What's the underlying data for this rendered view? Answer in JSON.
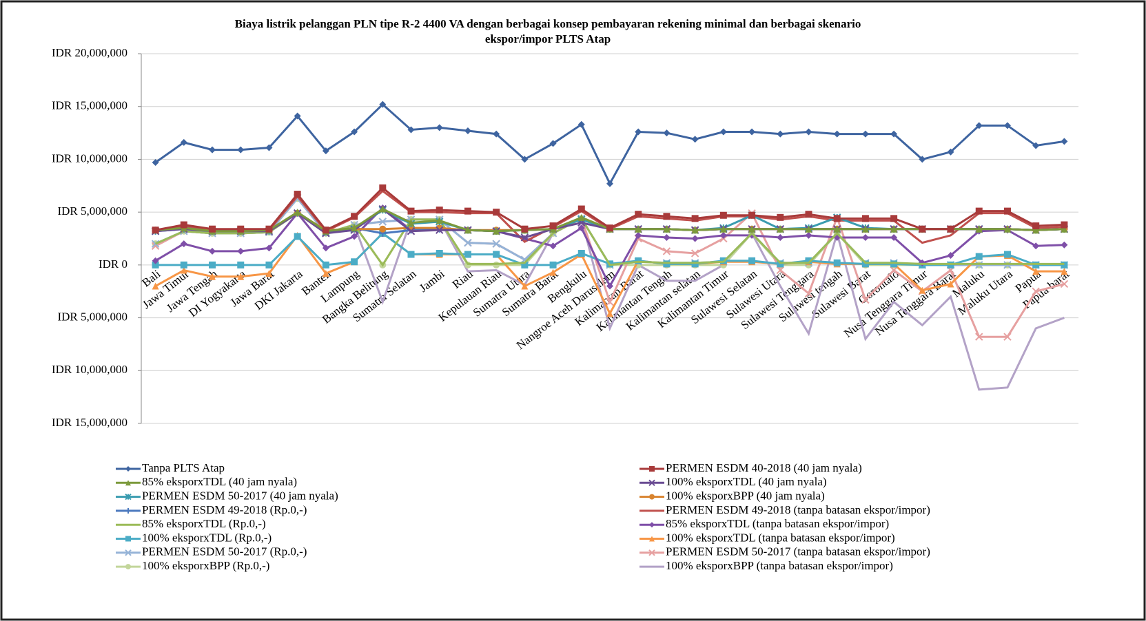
{
  "chart_data": {
    "type": "line",
    "title": [
      "Biaya listrik pelanggan PLN tipe R-2 4400 VA dengan berbagai konsep pembayaran  rekening minimal  dan berbagai skenario",
      "ekspor/impor  PLTS Atap"
    ],
    "categories": [
      "Bali",
      "Jawa Timur",
      "Jawa Tengah",
      "DI Yogyakarta",
      "Jawa Barat",
      "DKI Jakarta",
      "Banten",
      "Lampung",
      "Bangka Belitung",
      "Sumatra Selatan",
      "Jambi",
      "Riau",
      "Kepulauan Riau",
      "Sumatra Utara",
      "Sumatra Barat",
      "Bengkulu",
      "Nangroe Aceh Darusalam",
      "Kalimantan Barat",
      "Kalimantan Tengah",
      "Kalimantan selatan",
      "Kalimantan Timur",
      "Sulawesi Selatan",
      "Sulawesi Utara",
      "Sulawesi Tenggara",
      "Sulawesi tengah",
      "Sulawesi Barat",
      "Gorontalo",
      "Nusa Tenggara Timur",
      "Nusa Tenggara Barat",
      "Maluku",
      "Maluku Utara",
      "Papua",
      "Papua barat"
    ],
    "ylim": [
      -15000000,
      20000000
    ],
    "yticks": [
      {
        "value": 20000000,
        "label": "IDR 20,000,000"
      },
      {
        "value": 15000000,
        "label": "IDR 15,000,000"
      },
      {
        "value": 10000000,
        "label": "IDR 10,000,000"
      },
      {
        "value": 5000000,
        "label": "IDR 5,000,000"
      },
      {
        "value": 0,
        "label": "IDR 0"
      },
      {
        "value": -5000000,
        "label": "IDR 5,000,000"
      },
      {
        "value": -10000000,
        "label": "IDR 10,000,000"
      },
      {
        "value": -15000000,
        "label": "IDR 15,000,000"
      }
    ],
    "grid": true,
    "series": [
      {
        "name": "Tanpa PLTS Atap",
        "color": "#3e64a0",
        "marker": "diamond",
        "values": [
          9700000.0,
          11600000.0,
          10900000.0,
          10900000.0,
          11100000.0,
          14100000.0,
          10800000.0,
          12600000.0,
          15200000.0,
          12800000.0,
          13000000.0,
          12700000.0,
          12400000.0,
          10000000.0,
          11500000.0,
          13300000.0,
          7700000.0,
          12600000.0,
          12500000.0,
          11900000.0,
          12600000.0,
          12600000.0,
          12400000.0,
          12600000.0,
          12400000.0,
          12400000.0,
          12400000.0,
          10000000.0,
          10700000.0,
          13200000.0,
          13200000.0,
          11300000.0,
          11700000.0
        ]
      },
      {
        "name": "PERMEN ESDM 40-2018 (40 jam nyala)",
        "color": "#a83a3a",
        "marker": "square",
        "values": [
          3300000.0,
          3800000.0,
          3400000.0,
          3400000.0,
          3400000.0,
          6700000.0,
          3300000.0,
          4600000.0,
          7300000.0,
          5100000.0,
          5200000.0,
          5100000.0,
          5000000.0,
          3400000.0,
          3700000.0,
          5300000.0,
          3500000.0,
          4800000.0,
          4600000.0,
          4400000.0,
          4700000.0,
          4700000.0,
          4500000.0,
          4800000.0,
          4400000.0,
          4400000.0,
          4400000.0,
          3400000.0,
          3400000.0,
          5100000.0,
          5100000.0,
          3700000.0,
          3800000.0
        ]
      },
      {
        "name": "85% eksporxTDL (40 jam nyala)",
        "color": "#7c9a3c",
        "marker": "triangle",
        "values": [
          3300000.0,
          3500000.0,
          3200000.0,
          3200000.0,
          3300000.0,
          5000000.0,
          3200000.0,
          3500000.0,
          5300000.0,
          4000000.0,
          4200000.0,
          3300000.0,
          3200000.0,
          3300000.0,
          3400000.0,
          4500000.0,
          3400000.0,
          3400000.0,
          3400000.0,
          3300000.0,
          3400000.0,
          3400000.0,
          3400000.0,
          3400000.0,
          3400000.0,
          3400000.0,
          3400000.0,
          3400000.0,
          3400000.0,
          3400000.0,
          3400000.0,
          3300000.0,
          3400000.0
        ]
      },
      {
        "name": "100% eksporxTDL (40 jam nyala)",
        "color": "#6a4c93",
        "marker": "x",
        "values": [
          3200000.0,
          3400000.0,
          3200000.0,
          3200000.0,
          3200000.0,
          4900000.0,
          3000000.0,
          3300000.0,
          5300000.0,
          3200000.0,
          3300000.0,
          3300000.0,
          3200000.0,
          2600000.0,
          3400000.0,
          4000000.0,
          3400000.0,
          3400000.0,
          3400000.0,
          3300000.0,
          3400000.0,
          3400000.0,
          3400000.0,
          3400000.0,
          3400000.0,
          3400000.0,
          3400000.0,
          3400000.0,
          3400000.0,
          3400000.0,
          3400000.0,
          3300000.0,
          3400000.0
        ]
      },
      {
        "name": "PERMEN ESDM 50-2017 (40 jam nyala)",
        "color": "#3a9cb0",
        "marker": "star",
        "values": [
          3200000.0,
          3400000.0,
          3200000.0,
          3200000.0,
          3200000.0,
          4900000.0,
          3100000.0,
          3400000.0,
          5200000.0,
          3900000.0,
          4100000.0,
          3300000.0,
          3200000.0,
          3300000.0,
          3400000.0,
          4300000.0,
          3400000.0,
          3400000.0,
          3400000.0,
          3300000.0,
          3500000.0,
          4700000.0,
          3400000.0,
          3500000.0,
          4500000.0,
          3500000.0,
          3400000.0,
          3400000.0,
          3400000.0,
          3400000.0,
          3400000.0,
          3300000.0,
          3400000.0
        ]
      },
      {
        "name": "100% eksporxBPP (40 jam nyala)",
        "color": "#d8832e",
        "marker": "circle",
        "values": [
          3300000.0,
          3400000.0,
          3300000.0,
          3300000.0,
          3300000.0,
          4900000.0,
          3300000.0,
          3400000.0,
          3400000.0,
          3500000.0,
          3500000.0,
          3300000.0,
          3300000.0,
          3300000.0,
          3400000.0,
          4300000.0,
          3400000.0,
          3400000.0,
          3400000.0,
          3300000.0,
          3400000.0,
          3400000.0,
          3400000.0,
          3400000.0,
          3400000.0,
          3400000.0,
          3400000.0,
          3400000.0,
          3400000.0,
          3400000.0,
          3400000.0,
          3300000.0,
          3400000.0
        ]
      },
      {
        "name": "PERMEN ESDM 49-2018 (Rp.0,-)",
        "color": "#4a78be",
        "marker": "plus",
        "values": [
          3200000.0,
          3500000.0,
          3200000.0,
          3200000.0,
          3300000.0,
          4900000.0,
          3200000.0,
          3500000.0,
          3000000.0,
          3300000.0,
          3400000.0,
          3300000.0,
          3200000.0,
          3300000.0,
          3400000.0,
          4300000.0,
          3400000.0,
          3400000.0,
          3400000.0,
          3300000.0,
          3400000.0,
          3400000.0,
          3400000.0,
          3400000.0,
          3400000.0,
          3400000.0,
          3400000.0,
          3400000.0,
          3400000.0,
          3400000.0,
          3400000.0,
          3300000.0,
          3400000.0
        ]
      },
      {
        "name": "PERMEN ESDM 49-2018 (tanpa batasan ekspor/impor)",
        "color": "#c0504d",
        "marker": "none",
        "values": [
          3200000.0,
          3700000.0,
          3200000.0,
          3200000.0,
          3300000.0,
          6500000.0,
          3200000.0,
          4500000.0,
          7000000.0,
          5000000.0,
          5000000.0,
          4900000.0,
          4900000.0,
          2200000.0,
          3600000.0,
          5100000.0,
          3400000.0,
          4600000.0,
          4400000.0,
          4200000.0,
          4600000.0,
          4600000.0,
          4300000.0,
          4600000.0,
          4200000.0,
          4200000.0,
          4200000.0,
          2100000.0,
          2800000.0,
          4900000.0,
          4900000.0,
          3500000.0,
          3600000.0
        ]
      },
      {
        "name": "85% eksporxTDL (Rp.0,-)",
        "color": "#9bbb59",
        "marker": "none",
        "values": [
          2000000.0,
          3200000.0,
          3000000.0,
          3000000.0,
          3100000.0,
          4900000.0,
          3000000.0,
          3800000.0,
          0.0,
          4300000.0,
          4300000.0,
          100000.0,
          100000.0,
          200000.0,
          3000000.0,
          4400000.0,
          0.0,
          300000.0,
          200000.0,
          200000.0,
          300000.0,
          3000000.0,
          200000.0,
          200000.0,
          3000000.0,
          200000.0,
          200000.0,
          100000.0,
          100000.0,
          100000.0,
          100000.0,
          100000.0,
          100000.0
        ]
      },
      {
        "name": "85% eksporxTDL (tanpa batasan ekspor/impor)",
        "color": "#7f4fa8",
        "marker": "diamond",
        "values": [
          400000.0,
          2000000.0,
          1300000.0,
          1300000.0,
          1600000.0,
          4900000.0,
          1600000.0,
          2700000.0,
          5400000.0,
          3300000.0,
          3400000.0,
          3300000.0,
          3200000.0,
          2500000.0,
          1800000.0,
          3500000.0,
          -2000000.0,
          2800000.0,
          2600000.0,
          2500000.0,
          2800000.0,
          2800000.0,
          2600000.0,
          2800000.0,
          2600000.0,
          2600000.0,
          2600000.0,
          200000.0,
          900000.0,
          3200000.0,
          3300000.0,
          1800000.0,
          1900000.0
        ]
      },
      {
        "name": "100% eksporxTDL (Rp.0,-)",
        "color": "#4bacc6",
        "marker": "square",
        "values": [
          0.0,
          0.0,
          0.0,
          0.0,
          0.0,
          2700000.0,
          0.0,
          300000.0,
          3000000.0,
          1000000.0,
          1100000.0,
          1000000.0,
          1000000.0,
          0.0,
          0.0,
          1100000.0,
          100000.0,
          400000.0,
          100000.0,
          100000.0,
          400000.0,
          400000.0,
          100000.0,
          400000.0,
          200000.0,
          100000.0,
          100000.0,
          0.0,
          0.0,
          800000.0,
          1000000.0,
          0.0,
          0.0
        ]
      },
      {
        "name": "100% eksporxTDL (tanpa batasan ekspor/impor)",
        "color": "#f79646",
        "marker": "triangle",
        "values": [
          -2000000.0,
          -500000.0,
          -1100000.0,
          -1100000.0,
          -800000.0,
          2800000.0,
          -800000.0,
          300000.0,
          3000000.0,
          1000000.0,
          1000000.0,
          1000000.0,
          1000000.0,
          -2000000.0,
          -700000.0,
          1000000.0,
          -4600000.0,
          400000.0,
          100000.0,
          100000.0,
          300000.0,
          300000.0,
          100000.0,
          300000.0,
          100000.0,
          100000.0,
          100000.0,
          -2400000.0,
          -1800000.0,
          800000.0,
          900000.0,
          -600000.0,
          -600000.0
        ]
      },
      {
        "name": "PERMEN ESDM 50-2017 (Rp.0,-)",
        "color": "#95b3d7",
        "marker": "x",
        "values": [
          2000000.0,
          3200000.0,
          3000000.0,
          3000000.0,
          3100000.0,
          6300000.0,
          3000000.0,
          3800000.0,
          4100000.0,
          4300000.0,
          4300000.0,
          2100000.0,
          2000000.0,
          500000.0,
          3000000.0,
          4400000.0,
          0.0,
          300000.0,
          200000.0,
          200000.0,
          300000.0,
          3000000.0,
          200000.0,
          200000.0,
          3000000.0,
          200000.0,
          200000.0,
          0.0,
          0.0,
          0.0,
          0.0,
          0.0,
          0.0
        ]
      },
      {
        "name": "PERMEN ESDM 50-2017 (tanpa batasan ekspor/impor)",
        "color": "#e6a0a0",
        "marker": "x",
        "values": [
          1800000.0,
          3200000.0,
          3000000.0,
          3000000.0,
          3100000.0,
          6400000.0,
          3000000.0,
          3800000.0,
          4100000.0,
          4300000.0,
          4300000.0,
          2100000.0,
          2000000.0,
          500000.0,
          3000000.0,
          4400000.0,
          -3500000.0,
          2500000.0,
          1300000.0,
          1100000.0,
          2500000.0,
          4900000.0,
          -500000.0,
          -2700000.0,
          4500000.0,
          -3300000.0,
          -500000.0,
          -2500000.0,
          -500000.0,
          -6800000.0,
          -6800000.0,
          -2500000.0,
          -1800000.0
        ]
      },
      {
        "name": "100% eksporxBPP (Rp.0,-)",
        "color": "#c3d69b",
        "marker": "circle",
        "values": [
          2000000.0,
          3200000.0,
          3000000.0,
          3000000.0,
          3100000.0,
          6300000.0,
          3000000.0,
          3800000.0,
          0.0,
          4300000.0,
          4300000.0,
          0.0,
          0.0,
          0.0,
          3000000.0,
          4400000.0,
          0.0,
          0.0,
          0.0,
          0.0,
          0.0,
          3000000.0,
          0.0,
          0.0,
          3000000.0,
          0.0,
          0.0,
          0.0,
          0.0,
          0.0,
          0.0,
          0.0,
          0.0
        ]
      },
      {
        "name": "100% eksporxBPP (tanpa batasan ekspor/impor)",
        "color": "#b3a2c7",
        "marker": "none",
        "values": [
          2000000.0,
          3200000.0,
          3000000.0,
          3000000.0,
          3100000.0,
          6300000.0,
          3000000.0,
          3800000.0,
          -3500000.0,
          4300000.0,
          4300000.0,
          -600000.0,
          -500000.0,
          -1900000.0,
          3000000.0,
          4400000.0,
          -6000000.0,
          0.0,
          -1500000.0,
          -1500000.0,
          0.0,
          3000000.0,
          -2000000.0,
          -6500000.0,
          3000000.0,
          -7000000.0,
          -3500000.0,
          -5700000.0,
          -3000000.0,
          -11800000.0,
          -11600000.0,
          -6000000.0,
          -5000000.0
        ]
      }
    ]
  }
}
